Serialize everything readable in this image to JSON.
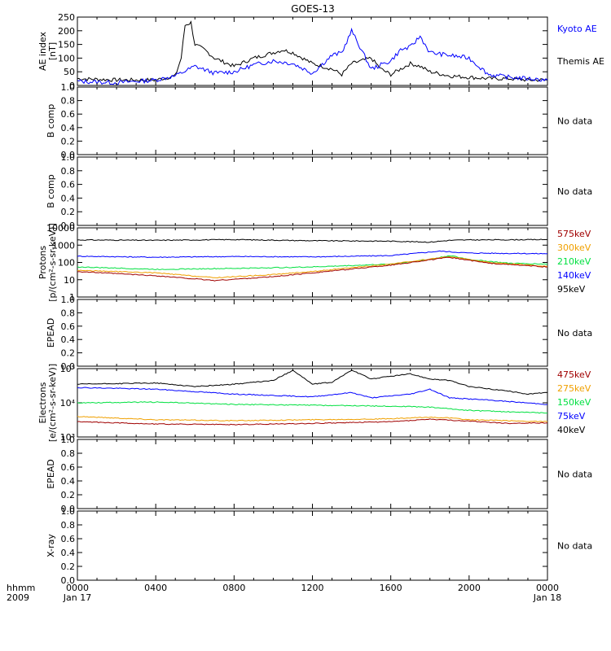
{
  "title": "GOES-13",
  "colors": {
    "black": "#000000",
    "blue": "#0000ff",
    "green": "#00e040",
    "orange": "#f0a000",
    "darkred": "#a00000"
  },
  "panels": [
    {
      "id": "ae",
      "ylabel": [
        "AE index",
        "[nT]"
      ],
      "ylim": [
        0,
        250
      ],
      "ticks": [
        "0",
        "50",
        "100",
        "150",
        "200",
        "250"
      ],
      "legend": [
        {
          "text": "Kyoto AE",
          "color": "blue"
        },
        {
          "text": "Themis AE",
          "color": "black"
        }
      ]
    },
    {
      "id": "bcomp1",
      "ylabel": [
        "B comp"
      ],
      "ylim": [
        0,
        1
      ],
      "ticks": [
        "0.0",
        "0.2",
        "0.4",
        "0.6",
        "0.8",
        "1.0"
      ],
      "status": "No data"
    },
    {
      "id": "bcomp2",
      "ylabel": [
        "B comp"
      ],
      "ylim": [
        0,
        1
      ],
      "ticks": [
        "0.0",
        "0.2",
        "0.4",
        "0.6",
        "0.8",
        "1.0"
      ],
      "status": "No data"
    },
    {
      "id": "protons",
      "ylabel": [
        "Protons",
        "[p/(cm²-s-sr-keV)]"
      ],
      "log": true,
      "ylim": [
        1,
        10000
      ],
      "ticks": [
        "1",
        "10",
        "100",
        "1000",
        "10000"
      ],
      "legend": [
        {
          "text": "575keV",
          "color": "darkred"
        },
        {
          "text": "300keV",
          "color": "orange"
        },
        {
          "text": "210keV",
          "color": "green"
        },
        {
          "text": "140keV",
          "color": "blue"
        },
        {
          "text": "95keV",
          "color": "black"
        }
      ]
    },
    {
      "id": "epead1",
      "ylabel": [
        "EPEAD"
      ],
      "ylim": [
        0,
        1
      ],
      "ticks": [
        "0.0",
        "0.2",
        "0.4",
        "0.6",
        "0.8",
        "1.0"
      ],
      "status": "No data"
    },
    {
      "id": "electrons",
      "ylabel": [
        "Electrons",
        "[e/(cm²-s-sr-keV)]"
      ],
      "log": true,
      "ylim": [
        1000,
        100000
      ],
      "ticks": [
        "10³",
        "10⁴",
        "10⁵"
      ],
      "legend": [
        {
          "text": "475keV",
          "color": "darkred"
        },
        {
          "text": "275keV",
          "color": "orange"
        },
        {
          "text": "150keV",
          "color": "green"
        },
        {
          "text": "75keV",
          "color": "blue"
        },
        {
          "text": "40keV",
          "color": "black"
        }
      ]
    },
    {
      "id": "epead2",
      "ylabel": [
        "EPEAD"
      ],
      "ylim": [
        0,
        1
      ],
      "ticks": [
        "0.0",
        "0.2",
        "0.4",
        "0.6",
        "0.8",
        "1.0"
      ],
      "status": "No data"
    },
    {
      "id": "xray",
      "ylabel": [
        "X-ray"
      ],
      "ylim": [
        0,
        1
      ],
      "ticks": [
        "0.0",
        "0.2",
        "0.4",
        "0.6",
        "0.8",
        "1.0"
      ],
      "status": "No data"
    }
  ],
  "xaxis": {
    "hhmm_label": "hhmm",
    "year_label": "2009",
    "ticks": [
      "0000",
      "0400",
      "0800",
      "1200",
      "1600",
      "2000",
      "0000"
    ],
    "start_label": "Jan 17",
    "end_label": "Jan 18"
  },
  "chart_data": {
    "type": "line",
    "title": "GOES-13",
    "x_hours_range": [
      0,
      24
    ],
    "ae": {
      "kyoto": [
        [
          0,
          15
        ],
        [
          2,
          10
        ],
        [
          4,
          20
        ],
        [
          5,
          35
        ],
        [
          6,
          70
        ],
        [
          7,
          45
        ],
        [
          8,
          50
        ],
        [
          9,
          75
        ],
        [
          10,
          90
        ],
        [
          11,
          80
        ],
        [
          12,
          45
        ],
        [
          13,
          110
        ],
        [
          13.5,
          120
        ],
        [
          14,
          200
        ],
        [
          14.5,
          130
        ],
        [
          15,
          60
        ],
        [
          16,
          90
        ],
        [
          16.5,
          130
        ],
        [
          17,
          140
        ],
        [
          17.5,
          180
        ],
        [
          18,
          120
        ],
        [
          19,
          110
        ],
        [
          19.5,
          105
        ],
        [
          20,
          100
        ],
        [
          20.5,
          70
        ],
        [
          21,
          40
        ],
        [
          22,
          30
        ],
        [
          23,
          25
        ],
        [
          24,
          20
        ]
      ],
      "themis": [
        [
          0,
          25
        ],
        [
          2,
          20
        ],
        [
          4,
          20
        ],
        [
          5,
          35
        ],
        [
          5.3,
          100
        ],
        [
          5.5,
          220
        ],
        [
          5.8,
          230
        ],
        [
          6,
          150
        ],
        [
          6.5,
          130
        ],
        [
          7,
          100
        ],
        [
          8,
          70
        ],
        [
          9,
          100
        ],
        [
          10,
          120
        ],
        [
          10.5,
          130
        ],
        [
          11,
          120
        ],
        [
          12,
          80
        ],
        [
          13,
          60
        ],
        [
          13.5,
          40
        ],
        [
          14,
          80
        ],
        [
          15,
          100
        ],
        [
          15.5,
          60
        ],
        [
          16,
          40
        ],
        [
          16.5,
          60
        ],
        [
          17,
          80
        ],
        [
          17.5,
          70
        ],
        [
          18,
          50
        ],
        [
          19,
          35
        ],
        [
          20,
          30
        ],
        [
          21,
          25
        ],
        [
          22,
          25
        ],
        [
          23,
          20
        ],
        [
          24,
          20
        ]
      ]
    },
    "protons": [
      {
        "name": "95keV",
        "color": "black",
        "pts": [
          [
            0,
            2000
          ],
          [
            4,
            1900
          ],
          [
            8,
            2100
          ],
          [
            12,
            1800
          ],
          [
            16,
            1700
          ],
          [
            18,
            1500
          ],
          [
            19,
            1900
          ],
          [
            20,
            2000
          ],
          [
            24,
            2100
          ]
        ]
      },
      {
        "name": "140keV",
        "color": "blue",
        "pts": [
          [
            0,
            230
          ],
          [
            4,
            200
          ],
          [
            8,
            220
          ],
          [
            12,
            210
          ],
          [
            16,
            250
          ],
          [
            18.5,
            450
          ],
          [
            20,
            350
          ],
          [
            24,
            320
          ]
        ]
      },
      {
        "name": "210keV",
        "color": "green",
        "pts": [
          [
            0,
            55
          ],
          [
            4,
            40
          ],
          [
            8,
            45
          ],
          [
            12,
            55
          ],
          [
            16,
            80
          ],
          [
            18,
            150
          ],
          [
            19,
            250
          ],
          [
            20,
            150
          ],
          [
            22,
            90
          ],
          [
            24,
            80
          ]
        ]
      },
      {
        "name": "300keV",
        "color": "orange",
        "pts": [
          [
            0,
            35
          ],
          [
            4,
            25
          ],
          [
            7,
            13
          ],
          [
            10,
            20
          ],
          [
            12,
            30
          ],
          [
            16,
            80
          ],
          [
            19,
            220
          ],
          [
            21,
            100
          ],
          [
            24,
            60
          ]
        ]
      },
      {
        "name": "575keV",
        "color": "darkred",
        "pts": [
          [
            0,
            30
          ],
          [
            4,
            17
          ],
          [
            7,
            9
          ],
          [
            10,
            15
          ],
          [
            12,
            25
          ],
          [
            16,
            70
          ],
          [
            19,
            200
          ],
          [
            21,
            90
          ],
          [
            24,
            55
          ]
        ]
      }
    ],
    "electrons": [
      {
        "name": "40keV",
        "color": "black",
        "pts": [
          [
            0,
            35000
          ],
          [
            4,
            38000
          ],
          [
            6,
            30000
          ],
          [
            8,
            35000
          ],
          [
            10,
            45000
          ],
          [
            11,
            90000
          ],
          [
            12,
            35000
          ],
          [
            13,
            40000
          ],
          [
            14,
            90000
          ],
          [
            15,
            50000
          ],
          [
            16,
            60000
          ],
          [
            17,
            70000
          ],
          [
            18,
            50000
          ],
          [
            19,
            45000
          ],
          [
            20,
            30000
          ],
          [
            22,
            22000
          ],
          [
            23,
            18000
          ],
          [
            24,
            20000
          ]
        ]
      },
      {
        "name": "75keV",
        "color": "blue",
        "pts": [
          [
            0,
            28000
          ],
          [
            4,
            25000
          ],
          [
            8,
            18000
          ],
          [
            12,
            15000
          ],
          [
            14,
            20000
          ],
          [
            15,
            14000
          ],
          [
            17,
            18000
          ],
          [
            18,
            25000
          ],
          [
            19,
            14000
          ],
          [
            21,
            12000
          ],
          [
            24,
            9000
          ]
        ]
      },
      {
        "name": "150keV",
        "color": "green",
        "pts": [
          [
            0,
            10000
          ],
          [
            4,
            10500
          ],
          [
            8,
            9000
          ],
          [
            12,
            8500
          ],
          [
            16,
            8000
          ],
          [
            18,
            7500
          ],
          [
            20,
            6000
          ],
          [
            24,
            5000
          ]
        ]
      },
      {
        "name": "275keV",
        "color": "orange",
        "pts": [
          [
            0,
            4000
          ],
          [
            4,
            3200
          ],
          [
            8,
            3000
          ],
          [
            12,
            3200
          ],
          [
            16,
            3400
          ],
          [
            18,
            3800
          ],
          [
            19,
            3600
          ],
          [
            20,
            3200
          ],
          [
            24,
            2800
          ]
        ]
      },
      {
        "name": "475keV",
        "color": "darkred",
        "pts": [
          [
            0,
            2800
          ],
          [
            4,
            2400
          ],
          [
            8,
            2300
          ],
          [
            12,
            2500
          ],
          [
            16,
            2800
          ],
          [
            18,
            3300
          ],
          [
            20,
            2900
          ],
          [
            22,
            2500
          ],
          [
            24,
            2600
          ]
        ]
      }
    ]
  }
}
